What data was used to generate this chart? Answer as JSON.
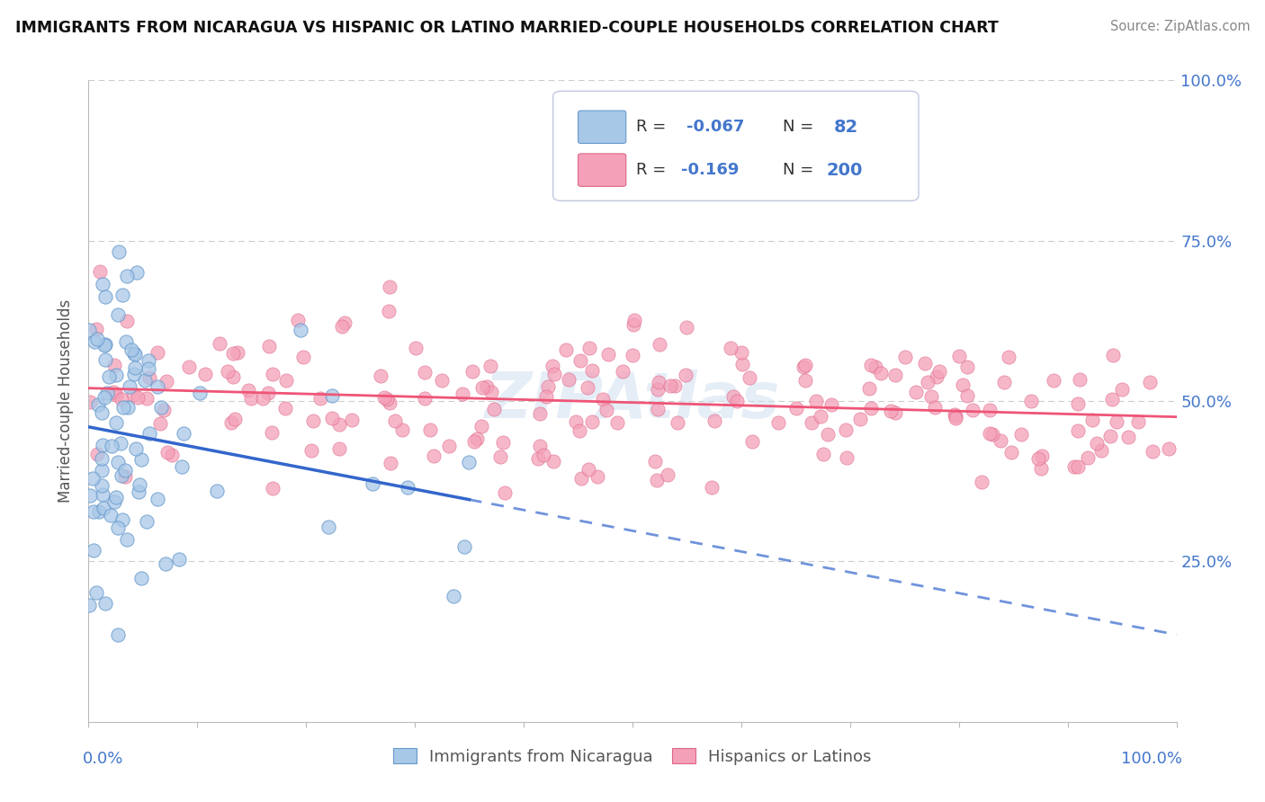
{
  "title": "IMMIGRANTS FROM NICARAGUA VS HISPANIC OR LATINO MARRIED-COUPLE HOUSEHOLDS CORRELATION CHART",
  "source": "Source: ZipAtlas.com",
  "ylabel": "Married-couple Households",
  "ylabel_right_labels": [
    "25.0%",
    "50.0%",
    "75.0%",
    "100.0%"
  ],
  "ylabel_right_positions": [
    0.25,
    0.5,
    0.75,
    1.0
  ],
  "blue_R": -0.067,
  "blue_N": 82,
  "pink_R": -0.169,
  "pink_N": 200,
  "blue_dot_color": "#a8c8e8",
  "blue_dot_edge": "#6699cc",
  "pink_dot_color": "#f4a0b8",
  "pink_dot_edge": "#dd6688",
  "blue_line_color": "#3366cc",
  "pink_line_color": "#ee5577",
  "label_color": "#4477cc",
  "text_color": "#333333",
  "grid_color": "#dddddd",
  "grid_dashed_color": "#cccccc",
  "watermark_color": "#d0dff0",
  "background_color": "#ffffff",
  "blue_scatter_seed": 12,
  "pink_scatter_seed": 7,
  "xlim": [
    0.0,
    1.0
  ],
  "ylim": [
    0.0,
    1.0
  ]
}
